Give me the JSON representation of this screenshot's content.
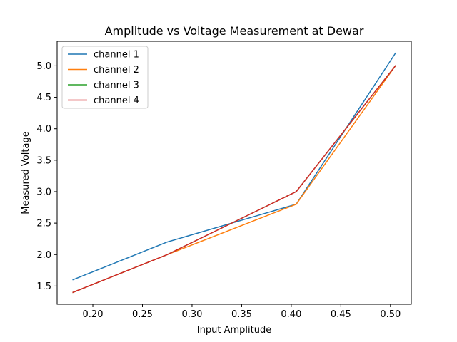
{
  "chart_data": {
    "type": "line",
    "title": "Amplitude vs Voltage Measurement at Dewar",
    "xlabel": "Input Amplitude",
    "ylabel": "Measured Voltage",
    "xlim": [
      0.164,
      0.521
    ],
    "ylim": [
      1.21,
      5.39
    ],
    "xticks": [
      "0.20",
      "0.25",
      "0.30",
      "0.35",
      "0.40",
      "0.45",
      "0.50"
    ],
    "yticks": [
      "1.5",
      "2.0",
      "2.5",
      "3.0",
      "3.5",
      "4.0",
      "4.5",
      "5.0"
    ],
    "grid": false,
    "legend_position": "upper-left",
    "x": [
      0.18,
      0.275,
      0.405,
      0.505
    ],
    "series": [
      {
        "name": "channel 1",
        "color": "#1f77b4",
        "values": [
          1.6,
          2.2,
          2.8,
          5.2
        ]
      },
      {
        "name": "channel 2",
        "color": "#ff7f0e",
        "values": [
          1.4,
          2.0,
          2.8,
          5.0
        ]
      },
      {
        "name": "channel 3",
        "color": "#2ca02c",
        "values": [
          1.4,
          2.0,
          3.0,
          5.0
        ]
      },
      {
        "name": "channel 4",
        "color": "#d62728",
        "values": [
          1.4,
          2.0,
          3.0,
          5.0
        ]
      }
    ]
  }
}
